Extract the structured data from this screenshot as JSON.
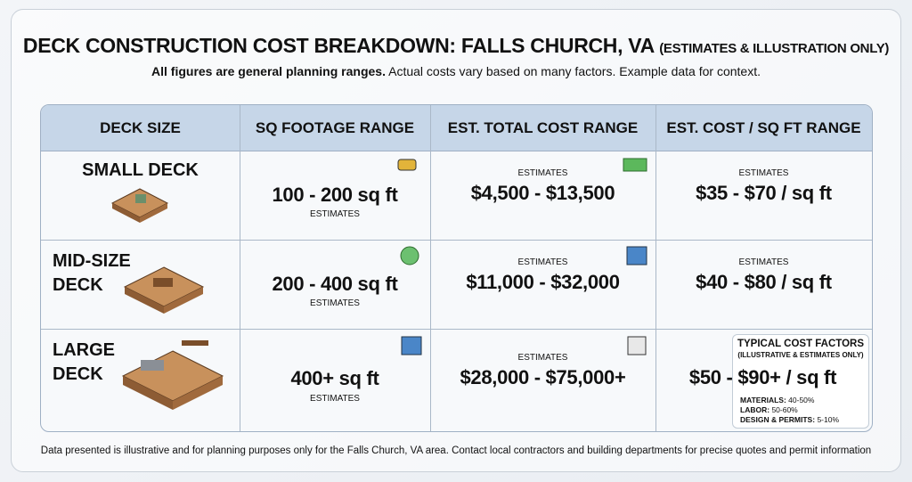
{
  "header": {
    "title": "DECK CONSTRUCTION COST BREAKDOWN: FALLS CHURCH, VA",
    "title_note": "(ESTIMATES & ILLUSTRATION ONLY)",
    "subtitle_bold": "All figures are general planning ranges.",
    "subtitle_rest": "Actual costs vary based on many factors. Example data for context."
  },
  "table": {
    "columns": [
      "DECK SIZE",
      "SQ FOOTAGE RANGE",
      "EST. TOTAL COST RANGE",
      "EST. COST / SQ FT RANGE"
    ],
    "rows": [
      {
        "name_lines": [
          "SMALL DECK"
        ],
        "sqft": {
          "value": "100 - 200 sq ft",
          "note": "ESTIMATES"
        },
        "total": {
          "value": "$4,500 - $13,500",
          "note": "ESTIMATES"
        },
        "per_sqft": {
          "value": "$35 - $70 / sq ft",
          "note": "ESTIMATES"
        }
      },
      {
        "name_lines": [
          "MID-SIZE",
          "DECK"
        ],
        "sqft": {
          "value": "200 - 400 sq ft",
          "note": "ESTIMATES"
        },
        "total": {
          "value": "$11,000 - $32,000",
          "note": "ESTIMATES"
        },
        "per_sqft": {
          "value": "$40 - $80 / sq ft",
          "note": "ESTIMATES"
        }
      },
      {
        "name_lines": [
          "LARGE",
          "DECK"
        ],
        "sqft": {
          "value": "400+ sq ft",
          "note": "ESTIMATES"
        },
        "total": {
          "value": "$28,000 - $75,000+",
          "note": "ESTIMATES"
        },
        "per_sqft": {
          "value": "$50 - $90+ / sq ft"
        }
      }
    ]
  },
  "cost_factors": {
    "title": "TYPICAL COST FACTORS",
    "note": "(ILLUSTRATIVE & ESTIMATES ONLY)",
    "items": [
      {
        "label": "MATERIALS:",
        "value": "40-50%"
      },
      {
        "label": "LABOR:",
        "value": "50-60%"
      },
      {
        "label": "DESIGN & PERMITS:",
        "value": "5-10%"
      }
    ]
  },
  "footer": "Data presented is illustrative and for planning purposes only for the Falls Church, VA area. Contact local contractors and building departments for precise quotes and permit information"
}
